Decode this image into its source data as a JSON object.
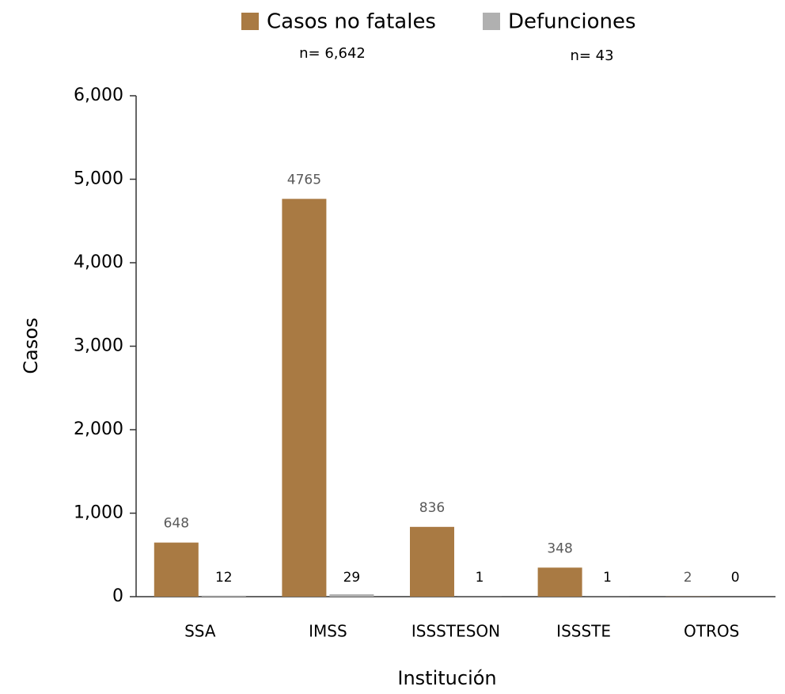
{
  "chart_data": {
    "type": "bar",
    "x_label": "Institución",
    "y_label": "Casos",
    "annotations": [
      "n= 6,642",
      "n= 43"
    ],
    "categories": [
      "SSA",
      "IMSS",
      "ISSSTESON",
      "ISSSTE",
      "OTROS"
    ],
    "series": [
      {
        "name": "Casos no fatales",
        "color": "#a97a43",
        "values": [
          648,
          4765,
          836,
          348,
          2
        ]
      },
      {
        "name": "Defunciones",
        "color": "#b0b0b0",
        "values": [
          12,
          29,
          1,
          1,
          0
        ]
      }
    ],
    "ylim": [
      0,
      6000
    ],
    "yticks": [
      0,
      {
        "value": 1000,
        "label": "1,000"
      },
      {
        "value": 2000,
        "label": "2,000"
      },
      {
        "value": 3000,
        "label": "3,000"
      },
      {
        "value": 4000,
        "label": "4,000"
      },
      {
        "value": 5000,
        "label": "5,000"
      },
      {
        "value": 6000,
        "label": "6,000"
      }
    ],
    "grid": false,
    "legend": "top"
  }
}
